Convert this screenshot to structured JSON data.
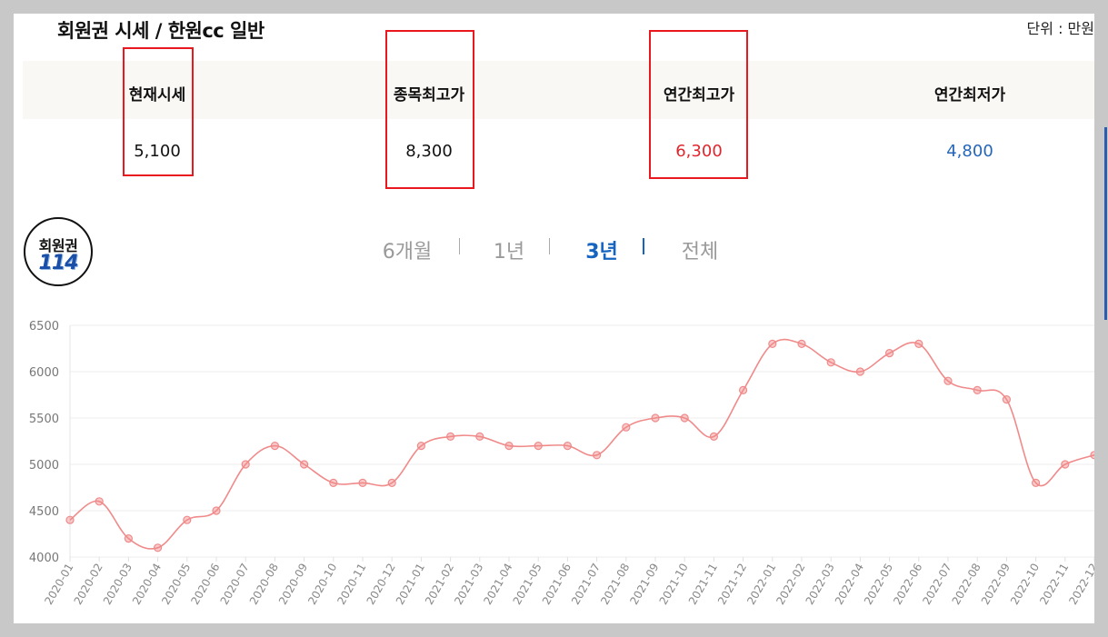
{
  "header": {
    "title": "회원권 시세 / 한원cc 일반",
    "unit": "단위 : 만원"
  },
  "stats": [
    {
      "label": "현재시세",
      "value": "5,100",
      "color": "#111111"
    },
    {
      "label": "종목최고가",
      "value": "8,300",
      "color": "#111111"
    },
    {
      "label": "연간최고가",
      "value": "6,300",
      "color": "#e0262d"
    },
    {
      "label": "연간최저가",
      "value": "4,800",
      "color": "#2566b8"
    }
  ],
  "logo": {
    "top_text": "회원권",
    "number": "114"
  },
  "tabs": [
    {
      "label": "6개월",
      "active": false
    },
    {
      "label": "1년",
      "active": false
    },
    {
      "label": "3년",
      "active": true
    },
    {
      "label": "전체",
      "active": false
    }
  ],
  "colors": {
    "highlight_box": "#e8181e",
    "line": "#f08a8a",
    "point": "#f08a8a",
    "active_tab": "#1565c0"
  },
  "chart_data": {
    "type": "line",
    "categories": [
      "2020-01",
      "2020-02",
      "2020-03",
      "2020-04",
      "2020-05",
      "2020-06",
      "2020-07",
      "2020-08",
      "2020-09",
      "2020-10",
      "2020-11",
      "2020-12",
      "2021-01",
      "2021-02",
      "2021-03",
      "2021-04",
      "2021-05",
      "2021-06",
      "2021-07",
      "2021-08",
      "2021-09",
      "2021-10",
      "2021-11",
      "2021-12",
      "2022-01",
      "2022-02",
      "2022-03",
      "2022-04",
      "2022-05",
      "2022-06",
      "2022-07",
      "2022-08",
      "2022-09",
      "2022-10",
      "2022-11",
      "2022-12"
    ],
    "values": [
      4400,
      4600,
      4200,
      4100,
      4400,
      4500,
      5000,
      5200,
      5000,
      4800,
      4800,
      4800,
      5200,
      5300,
      5300,
      5200,
      5200,
      5200,
      5100,
      5400,
      5500,
      5500,
      5300,
      5800,
      6300,
      6300,
      6100,
      6000,
      6200,
      6300,
      5900,
      5800,
      5700,
      4800,
      5000,
      5100
    ],
    "ylim": [
      4000,
      6500
    ],
    "yticks": [
      4000,
      4500,
      5000,
      5500,
      6000,
      6500
    ],
    "grid": true,
    "legend": "none"
  }
}
